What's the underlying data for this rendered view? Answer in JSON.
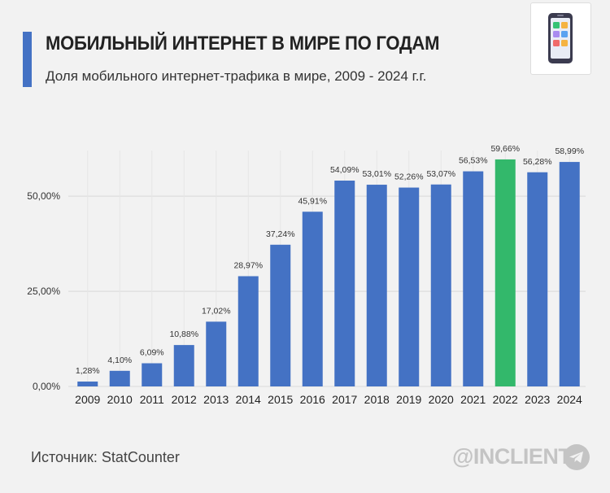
{
  "header": {
    "title": "МОБИЛЬНЫЙ ИНТЕРНЕТ В МИРЕ ПО ГОДАМ",
    "subtitle": "Доля мобильного интернет-трафика в мире, 2009 - 2024 г.г."
  },
  "footer": {
    "source": "Источник: StatCounter",
    "brand": "@INCLIENT",
    "brand_icon": "telegram-icon"
  },
  "decor": {
    "phone_icon": "smartphone-icon"
  },
  "colors": {
    "bar": "#4472c4",
    "highlight": "#33b86b",
    "accent": "#4472c4",
    "grid": "#d9d9d9"
  },
  "chart_data": {
    "type": "bar",
    "title": "",
    "xlabel": "",
    "ylabel": "",
    "categories": [
      "2009",
      "2010",
      "2011",
      "2012",
      "2013",
      "2014",
      "2015",
      "2016",
      "2017",
      "2018",
      "2019",
      "2020",
      "2021",
      "2022",
      "2023",
      "2024"
    ],
    "values": [
      1.28,
      4.1,
      6.09,
      10.88,
      17.02,
      28.97,
      37.24,
      45.91,
      54.09,
      53.01,
      52.26,
      53.07,
      56.53,
      59.66,
      56.28,
      58.99
    ],
    "data_labels": [
      "1,28%",
      "4,10%",
      "6,09%",
      "10,88%",
      "17,02%",
      "28,97%",
      "37,24%",
      "45,91%",
      "54,09%",
      "53,01%",
      "52,26%",
      "53,07%",
      "56,53%",
      "59,66%",
      "56,28%",
      "58,99%"
    ],
    "highlight_category": "2022",
    "ylim": [
      0,
      62
    ],
    "yticks": [
      0,
      25,
      50
    ],
    "ytick_labels": [
      "0,00%",
      "25,00%",
      "50,00%"
    ],
    "grid": true
  }
}
